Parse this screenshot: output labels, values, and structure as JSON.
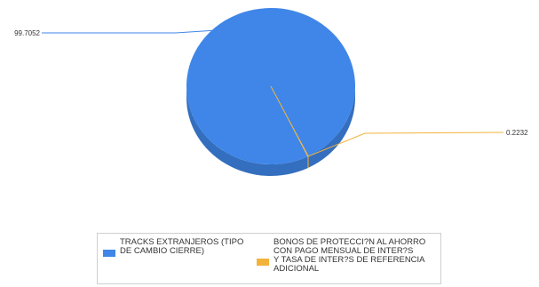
{
  "chart_data": {
    "type": "pie",
    "title": "",
    "slices": [
      {
        "label": "TRACKS EXTRANJEROS (TIPO\nDE CAMBIO CIERRE)",
        "value": 99.7052,
        "value_label": "99.7052",
        "color": "#3f86e8"
      },
      {
        "label": "BONOS DE PROTECCI?N AL AHORRO\nCON PAGO MENSUAL DE INTER?S\nY TASA DE INTER?S DE REFERENCIA\nADICIONAL",
        "value": 0.2232,
        "value_label": "0.2232",
        "color": "#f2b33d"
      }
    ],
    "legend_position": "bottom",
    "style": "3d"
  }
}
